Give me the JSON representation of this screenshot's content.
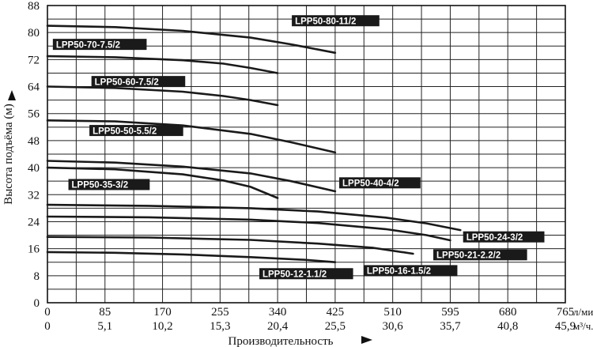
{
  "chart_data": {
    "type": "line",
    "ylabel": "Высота подъёма (м)",
    "xlabel": "Производительность",
    "ylim": [
      0,
      88
    ],
    "yticks": [
      0,
      8,
      16,
      24,
      32,
      40,
      48,
      56,
      64,
      72,
      80,
      88
    ],
    "x_flow_ticks": [
      "0",
      "85",
      "170",
      "255",
      "340",
      "425",
      "510",
      "595",
      "680",
      "765"
    ],
    "x_flow_unit": "л/мин.",
    "x_volume_ticks": [
      "0",
      "5,1",
      "10,2",
      "15,3",
      "20,4",
      "25,5",
      "30,6",
      "35,7",
      "40,8",
      "45,9"
    ],
    "x_volume_unit": "м³/ч.",
    "xlim": [
      0,
      765
    ],
    "grid": true,
    "series": [
      {
        "name": "LPP50-80-11/2",
        "x": [
          0,
          100,
          200,
          300,
          360,
          425
        ],
        "y": [
          82,
          81.6,
          80.5,
          78.5,
          76.5,
          74
        ]
      },
      {
        "name": "LPP50-70-7.5/2",
        "x": [
          0,
          100,
          200,
          260,
          300,
          340
        ],
        "y": [
          73,
          72.7,
          71.8,
          70.8,
          69.5,
          68
        ]
      },
      {
        "name": "LPP50-60-7.5/2",
        "x": [
          0,
          100,
          200,
          260,
          300,
          340
        ],
        "y": [
          64,
          63.6,
          62.5,
          61.2,
          60,
          58.5
        ]
      },
      {
        "name": "LPP50-50-5.5/2",
        "x": [
          0,
          100,
          200,
          300,
          360,
          425
        ],
        "y": [
          54,
          53.7,
          52.5,
          50,
          47.5,
          44.5
        ]
      },
      {
        "name": "LPP50-40-4/2",
        "x": [
          0,
          100,
          200,
          300,
          360,
          425
        ],
        "y": [
          42,
          41.5,
          40.3,
          38.3,
          36,
          33
        ]
      },
      {
        "name": "LPP50-35-3/2",
        "x": [
          0,
          100,
          200,
          260,
          300,
          340
        ],
        "y": [
          40,
          39.5,
          38,
          36.2,
          34.3,
          31
        ]
      },
      {
        "name": "LPP50-24-3/2",
        "x": [
          0,
          150,
          300,
          400,
          500,
          560,
          610
        ],
        "y": [
          29,
          28.7,
          28,
          27,
          25.2,
          23.5,
          21.5
        ]
      },
      {
        "name": "LPP50-21-2.2/2",
        "x": [
          0,
          150,
          300,
          400,
          500,
          560,
          595
        ],
        "y": [
          25.5,
          25.3,
          24.6,
          23.6,
          21.8,
          20,
          18.5
        ]
      },
      {
        "name": "LPP50-16-1.5/2",
        "x": [
          0,
          150,
          300,
          400,
          480,
          540
        ],
        "y": [
          19.5,
          19.3,
          18.6,
          17.5,
          16.3,
          14.5
        ]
      },
      {
        "name": "LPP50-12-1.1/2",
        "x": [
          0,
          100,
          200,
          300,
          380,
          425
        ],
        "y": [
          15,
          14.8,
          14.3,
          13.5,
          12.7,
          12
        ]
      }
    ],
    "labels": [
      {
        "text": "LPP50-80-11/2",
        "x": 361,
        "y": 83.5
      },
      {
        "text": "LPP50-70-7.5/2",
        "x": 8,
        "y": 76.5
      },
      {
        "text": "LPP50-60-7.5/2",
        "x": 65,
        "y": 65.5
      },
      {
        "text": "LPP50-50-5.5/2",
        "x": 62,
        "y": 51
      },
      {
        "text": "LPP50-40-4/2",
        "x": 431,
        "y": 35.5
      },
      {
        "text": "LPP50-35-3/2",
        "x": 31,
        "y": 35
      },
      {
        "text": "LPP50-24-3/2",
        "x": 614,
        "y": 19.5
      },
      {
        "text": "LPP50-21-2.2/2",
        "x": 570,
        "y": 14.2
      },
      {
        "text": "LPP50-16-1.5/2",
        "x": 467,
        "y": 9.5
      },
      {
        "text": "LPP50-12-1.1/2",
        "x": 313,
        "y": 8.6
      }
    ]
  }
}
